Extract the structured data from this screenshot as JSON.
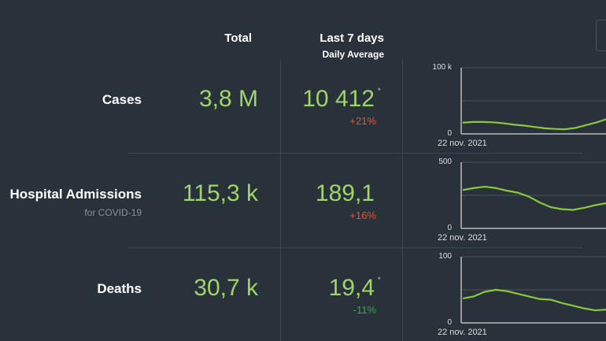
{
  "header": {
    "total": "Total",
    "last7": "Last 7 days",
    "daily_avg": "Daily Average"
  },
  "rows": [
    {
      "label": "Cases",
      "note": "",
      "total": "3,8 M",
      "avg": "10 412",
      "star": "*",
      "change": "+21%",
      "change_color": "#e8532b",
      "chart": {
        "ymax_label": "100 k",
        "ymin_label": "0",
        "date": "22 nov. 2021",
        "ymax": 100000,
        "values": [
          17000,
          18000,
          18000,
          17500,
          16000,
          14000,
          12500,
          10500,
          8500,
          7500,
          7000,
          9000,
          13000,
          17000,
          22000
        ]
      }
    },
    {
      "label": "Hospital Admissions",
      "note": "for COVID-19",
      "total": "115,3 k",
      "avg": "189,1",
      "star": "",
      "change": "+16%",
      "change_color": "#e8532b",
      "chart": {
        "ymax_label": "500",
        "ymin_label": "0",
        "date": "22 nov. 2021",
        "ymax": 500,
        "values": [
          290,
          305,
          315,
          305,
          285,
          270,
          240,
          195,
          160,
          145,
          140,
          155,
          175,
          190
        ]
      }
    },
    {
      "label": "Deaths",
      "note": "",
      "total": "30,7 k",
      "avg": "19,4",
      "star": "*",
      "change": "-11%",
      "change_color": "#3fa34d",
      "chart": {
        "ymax_label": "100",
        "ymin_label": "0",
        "date": "22 nov. 2021",
        "ymax": 100,
        "values": [
          37,
          40,
          47,
          50,
          48,
          44,
          40,
          36,
          35,
          30,
          26,
          22,
          19,
          20
        ]
      }
    }
  ],
  "colors": {
    "line": "#8cc63f",
    "value": "#9fd46b"
  }
}
